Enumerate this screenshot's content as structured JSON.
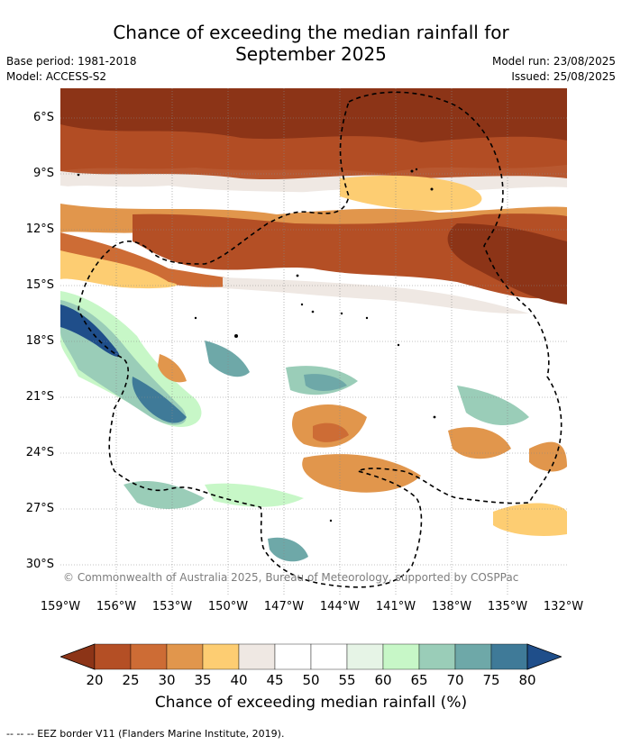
{
  "title_line1": "Chance of exceeding the median rainfall for",
  "title_line2": "September 2025",
  "base_period": "Base period: 1981-2018",
  "model": "Model: ACCESS-S2",
  "model_run": "Model run: 23/08/2025",
  "issued": "Issued: 25/08/2025",
  "y_ticks": [
    "6°S",
    "9°S",
    "12°S",
    "15°S",
    "18°S",
    "21°S",
    "24°S",
    "27°S",
    "30°S"
  ],
  "x_ticks": [
    "159°W",
    "156°W",
    "153°W",
    "150°W",
    "147°W",
    "144°W",
    "141°W",
    "138°W",
    "135°W",
    "132°W"
  ],
  "copyright": "© Commonwealth of Australia 2025, Bureau of Meteorology, supported by COSPPac",
  "colorbar": {
    "ticks": [
      "20",
      "25",
      "30",
      "35",
      "40",
      "45",
      "50",
      "55",
      "60",
      "65",
      "70",
      "75",
      "80"
    ],
    "label": "Chance of exceeding median rainfall (%)",
    "colors": [
      "#8c3417",
      "#b44f25",
      "#cd6c35",
      "#e1964c",
      "#fdcd72",
      "#efe8e3",
      "#ffffff",
      "#ffffff",
      "#e6f4e6",
      "#c7f7c7",
      "#9acdb8",
      "#6ea8a8",
      "#3f7a98",
      "#1f4e8a"
    ]
  },
  "footnote": "--  --  -- EEZ border V11 (Flanders Marine Institute, 2019)."
}
